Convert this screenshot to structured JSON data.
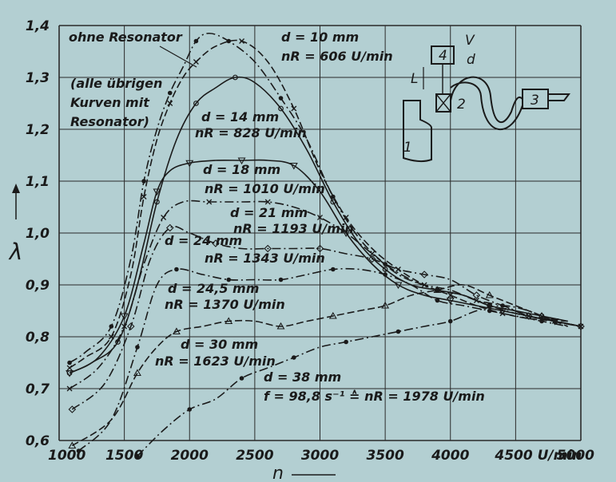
{
  "chart_data": {
    "type": "line",
    "x": [
      1000,
      1500,
      2000,
      2500,
      3000,
      3500,
      4000,
      4500,
      5000
    ],
    "xticks": [
      "1000",
      "1500",
      "2000",
      "2500",
      "3000",
      "3500",
      "4000",
      "4500 U/min",
      "5000"
    ],
    "yticks": [
      "0,6",
      "0,7",
      "0,8",
      "0,9",
      "1,0",
      "1,1",
      "1,2",
      "1,3",
      "1,4"
    ],
    "yvalues": [
      0.6,
      0.7,
      0.8,
      0.9,
      1.0,
      1.1,
      1.2,
      1.3,
      1.4
    ],
    "xlim": [
      1000,
      5000
    ],
    "ylim": [
      0.6,
      1.4
    ],
    "ylabel": "λ",
    "xlabel": "n",
    "grid": true,
    "series": [
      {
        "id": "ohne",
        "style": "dashdot",
        "marker": "dot",
        "label_lines": [
          "ohne Resonator"
        ],
        "x": [
          1080,
          1200,
          1400,
          1550,
          1650,
          1750,
          1850,
          1950,
          2050,
          2150,
          2300,
          2500,
          2700,
          2900,
          3100,
          3300,
          3500,
          3700,
          3900,
          4100,
          4300,
          4500,
          4700,
          4900
        ],
        "y": [
          0.75,
          0.77,
          0.82,
          0.95,
          1.1,
          1.2,
          1.27,
          1.32,
          1.37,
          1.385,
          1.37,
          1.33,
          1.26,
          1.18,
          1.07,
          0.99,
          0.94,
          0.91,
          0.89,
          0.88,
          0.86,
          0.845,
          0.835,
          0.83
        ]
      },
      {
        "id": "d10",
        "style": "dashed",
        "marker": "x",
        "label_lines": [
          "d = 10 mm",
          "nR = 606 U/min"
        ],
        "x": [
          1080,
          1200,
          1400,
          1550,
          1650,
          1750,
          1850,
          1950,
          2050,
          2200,
          2400,
          2600,
          2800,
          3000,
          3200,
          3400,
          3600,
          3800,
          4000,
          4200,
          4400,
          4600,
          4800,
          5000
        ],
        "y": [
          0.74,
          0.76,
          0.8,
          0.92,
          1.07,
          1.18,
          1.25,
          1.3,
          1.33,
          1.36,
          1.37,
          1.33,
          1.24,
          1.12,
          1.03,
          0.97,
          0.93,
          0.9,
          0.88,
          0.86,
          0.845,
          0.835,
          0.83,
          0.82
        ]
      },
      {
        "id": "d14",
        "style": "solid",
        "marker": "circle",
        "label_lines": [
          "d = 14 mm",
          "nR = 828 U/min"
        ],
        "x": [
          1080,
          1250,
          1450,
          1600,
          1750,
          1900,
          2050,
          2200,
          2350,
          2500,
          2700,
          2900,
          3100,
          3300,
          3500,
          3700,
          3900,
          4100,
          4300,
          4500,
          4700,
          4900
        ],
        "y": [
          0.73,
          0.75,
          0.79,
          0.9,
          1.06,
          1.18,
          1.25,
          1.28,
          1.3,
          1.29,
          1.24,
          1.16,
          1.06,
          0.98,
          0.93,
          0.9,
          0.89,
          0.88,
          0.86,
          0.85,
          0.84,
          0.83
        ]
      },
      {
        "id": "d18",
        "style": "solid",
        "marker": "triangle-down",
        "label_lines": [
          "d = 18 mm",
          "nR = 1010 U/min"
        ],
        "x": [
          1080,
          1300,
          1500,
          1650,
          1750,
          1850,
          2000,
          2200,
          2400,
          2600,
          2800,
          3000,
          3200,
          3400,
          3600,
          3800,
          4000,
          4200,
          4400,
          4600,
          4800,
          5000
        ],
        "y": [
          0.73,
          0.76,
          0.84,
          0.98,
          1.08,
          1.12,
          1.135,
          1.14,
          1.14,
          1.14,
          1.13,
          1.08,
          1.0,
          0.94,
          0.9,
          0.88,
          0.87,
          0.86,
          0.85,
          0.84,
          0.83,
          0.82
        ]
      },
      {
        "id": "d21",
        "style": "dashdot",
        "marker": "x",
        "label_lines": [
          "d = 21 mm",
          "nR = 1193 U/min"
        ],
        "x": [
          1080,
          1300,
          1500,
          1650,
          1800,
          1950,
          2150,
          2400,
          2600,
          2800,
          3000,
          3200,
          3400,
          3600,
          3800,
          4000,
          4200,
          4400,
          4600,
          4800,
          5000
        ],
        "y": [
          0.7,
          0.74,
          0.82,
          0.94,
          1.03,
          1.06,
          1.06,
          1.06,
          1.06,
          1.05,
          1.03,
          1.0,
          0.96,
          0.92,
          0.9,
          0.89,
          0.87,
          0.86,
          0.84,
          0.83,
          0.82
        ]
      },
      {
        "id": "d24",
        "style": "dashdot",
        "marker": "diamond",
        "label_lines": [
          "d = 24 mm",
          "nR = 1343 U/min"
        ],
        "x": [
          1100,
          1350,
          1550,
          1700,
          1850,
          2000,
          2200,
          2400,
          2600,
          2800,
          3000,
          3200,
          3400,
          3600,
          3800,
          4000,
          4200,
          4400,
          4600,
          4800,
          5000
        ],
        "y": [
          0.66,
          0.71,
          0.82,
          0.95,
          1.01,
          1.0,
          0.98,
          0.97,
          0.97,
          0.97,
          0.97,
          0.96,
          0.95,
          0.93,
          0.92,
          0.91,
          0.88,
          0.86,
          0.84,
          0.83,
          0.82
        ]
      },
      {
        "id": "d245",
        "style": "dashdot",
        "marker": "dot",
        "label_lines": [
          "d = 24,5 mm",
          "nR = 1370 U/min"
        ],
        "x": [
          1150,
          1400,
          1600,
          1750,
          1900,
          2100,
          2300,
          2500,
          2700,
          2900,
          3100,
          3300,
          3500,
          3700,
          3900,
          4100,
          4300,
          4500,
          4700,
          4900
        ],
        "y": [
          0.58,
          0.64,
          0.78,
          0.9,
          0.93,
          0.92,
          0.91,
          0.91,
          0.91,
          0.92,
          0.93,
          0.93,
          0.92,
          0.9,
          0.87,
          0.86,
          0.85,
          0.84,
          0.83,
          0.82
        ]
      },
      {
        "id": "d30",
        "style": "dashed",
        "marker": "triangle",
        "label_lines": [
          "d = 30 mm",
          "nR = 1623 U/min"
        ],
        "x": [
          1100,
          1400,
          1600,
          1750,
          1900,
          2100,
          2300,
          2500,
          2700,
          2900,
          3100,
          3300,
          3500,
          3700,
          3900,
          4100,
          4300,
          4500,
          4700,
          4900
        ],
        "y": [
          0.59,
          0.64,
          0.73,
          0.78,
          0.81,
          0.82,
          0.83,
          0.83,
          0.82,
          0.83,
          0.84,
          0.85,
          0.86,
          0.88,
          0.89,
          0.9,
          0.88,
          0.86,
          0.84,
          0.82
        ]
      },
      {
        "id": "d38",
        "style": "dashdot",
        "marker": "dot",
        "label_lines": [
          "d = 38 mm",
          "f = 98,8 s⁻¹ ≙ nR = 1978 U/min"
        ],
        "x": [
          1600,
          1800,
          2000,
          2200,
          2400,
          2600,
          2800,
          3000,
          3200,
          3400,
          3600,
          3800,
          4000,
          4200,
          4400,
          4600,
          4800,
          5000
        ],
        "y": [
          0.57,
          0.62,
          0.66,
          0.68,
          0.72,
          0.74,
          0.76,
          0.78,
          0.79,
          0.8,
          0.81,
          0.82,
          0.83,
          0.85,
          0.86,
          0.85,
          0.83,
          0.82
        ]
      }
    ],
    "annotation": [
      "(alle übrigen",
      "Kurven mit",
      "Resonator)"
    ]
  },
  "schematic_labels": [
    "1",
    "2",
    "3",
    "4",
    "V",
    "d",
    "L"
  ],
  "colors": {
    "background": "#b3cfd2",
    "ink": "#1a1a1a",
    "grid": "#2a2a2a"
  }
}
